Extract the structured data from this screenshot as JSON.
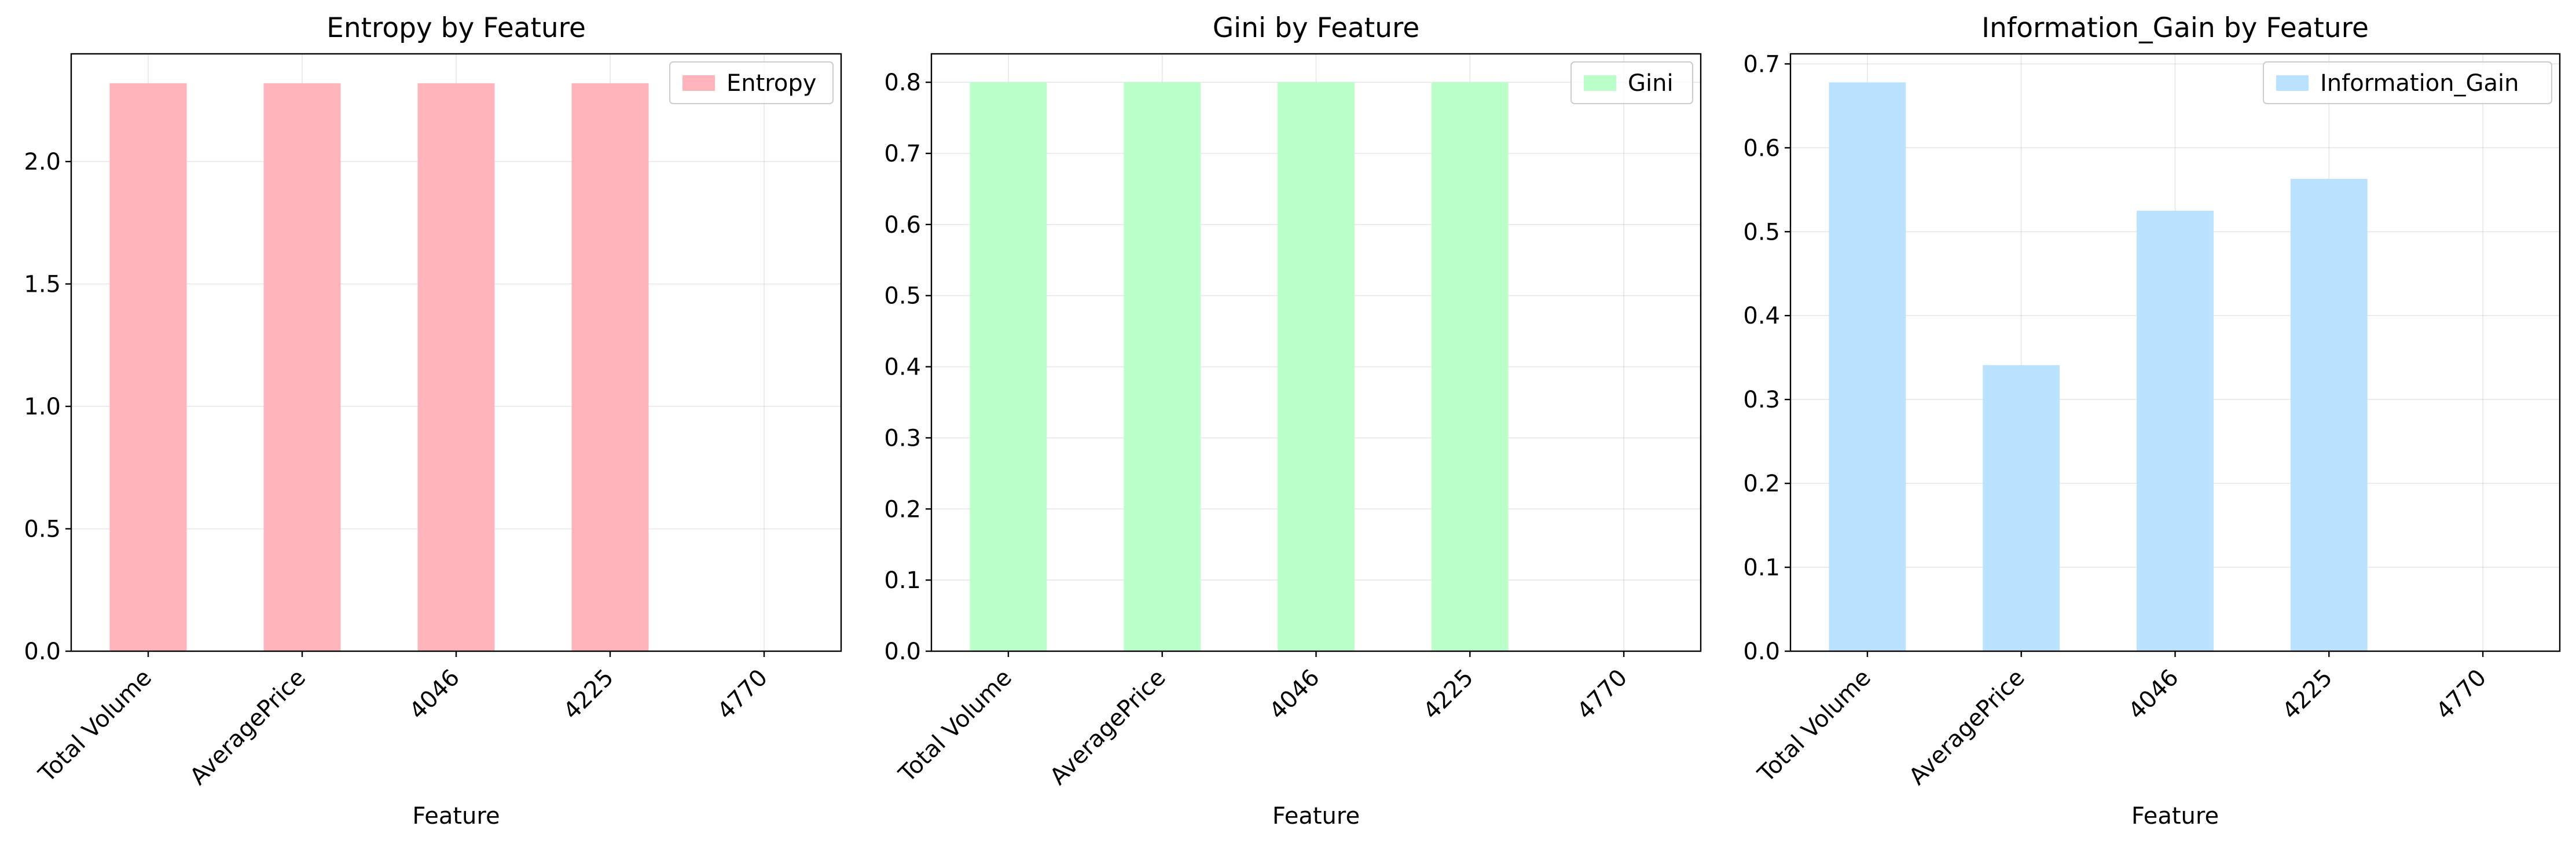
{
  "chart_data": [
    {
      "type": "bar",
      "title": "Entropy by Feature",
      "xlabel": "Feature",
      "ylabel": "",
      "categories": [
        "Total Volume",
        "AveragePrice",
        "4046",
        "4225",
        "4770"
      ],
      "series": [
        {
          "name": "Entropy",
          "values": [
            2.32,
            2.32,
            2.32,
            2.32,
            0
          ]
        }
      ],
      "ylim": [
        0,
        2.44
      ],
      "yticks": [
        0.0,
        0.5,
        1.0,
        1.5,
        2.0
      ],
      "ytick_labels": [
        "0.0",
        "0.5",
        "1.0",
        "1.5",
        "2.0"
      ],
      "grid": true,
      "legend": "top-right",
      "color": "#ffb3ba"
    },
    {
      "type": "bar",
      "title": "Gini by Feature",
      "xlabel": "Feature",
      "ylabel": "",
      "categories": [
        "Total Volume",
        "AveragePrice",
        "4046",
        "4225",
        "4770"
      ],
      "series": [
        {
          "name": "Gini",
          "values": [
            0.8,
            0.8,
            0.8,
            0.8,
            0
          ]
        }
      ],
      "ylim": [
        0,
        0.84
      ],
      "yticks": [
        0.0,
        0.1,
        0.2,
        0.3,
        0.4,
        0.5,
        0.6,
        0.7,
        0.8
      ],
      "ytick_labels": [
        "0.0",
        "0.1",
        "0.2",
        "0.3",
        "0.4",
        "0.5",
        "0.6",
        "0.7",
        "0.8"
      ],
      "grid": true,
      "legend": "top-right",
      "color": "#baffc9"
    },
    {
      "type": "bar",
      "title": "Information_Gain by Feature",
      "xlabel": "Feature",
      "ylabel": "",
      "categories": [
        "Total Volume",
        "AveragePrice",
        "4046",
        "4225",
        "4770"
      ],
      "series": [
        {
          "name": "Information_Gain",
          "values": [
            0.678,
            0.341,
            0.525,
            0.563,
            0
          ]
        }
      ],
      "ylim": [
        0,
        0.712
      ],
      "yticks": [
        0.0,
        0.1,
        0.2,
        0.3,
        0.4,
        0.5,
        0.6,
        0.7
      ],
      "ytick_labels": [
        "0.0",
        "0.1",
        "0.2",
        "0.3",
        "0.4",
        "0.5",
        "0.6",
        "0.7"
      ],
      "grid": true,
      "legend": "top-right",
      "color": "#bae1ff"
    }
  ]
}
